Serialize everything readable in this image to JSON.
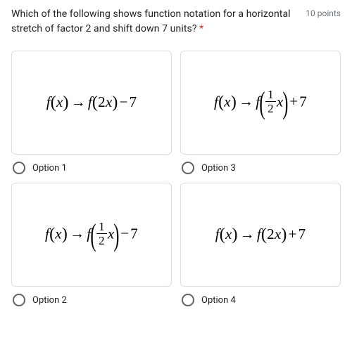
{
  "question": {
    "text": "Which of the following shows function notation for a horizontal stretch of factor 2 and shift down 7 units?",
    "required_marker": "*",
    "points": "10 points"
  },
  "options": {
    "opt1": {
      "label": "Option 1"
    },
    "opt2": {
      "label": "Option 2"
    },
    "opt3": {
      "label": "Option 3"
    },
    "opt4": {
      "label": "Option 4"
    }
  },
  "formulas": {
    "f": "f",
    "x": "x",
    "arrow": "→",
    "minus": "−",
    "plus": "+",
    "seven": "7",
    "two": "2",
    "one": "1",
    "half_x": "x"
  }
}
